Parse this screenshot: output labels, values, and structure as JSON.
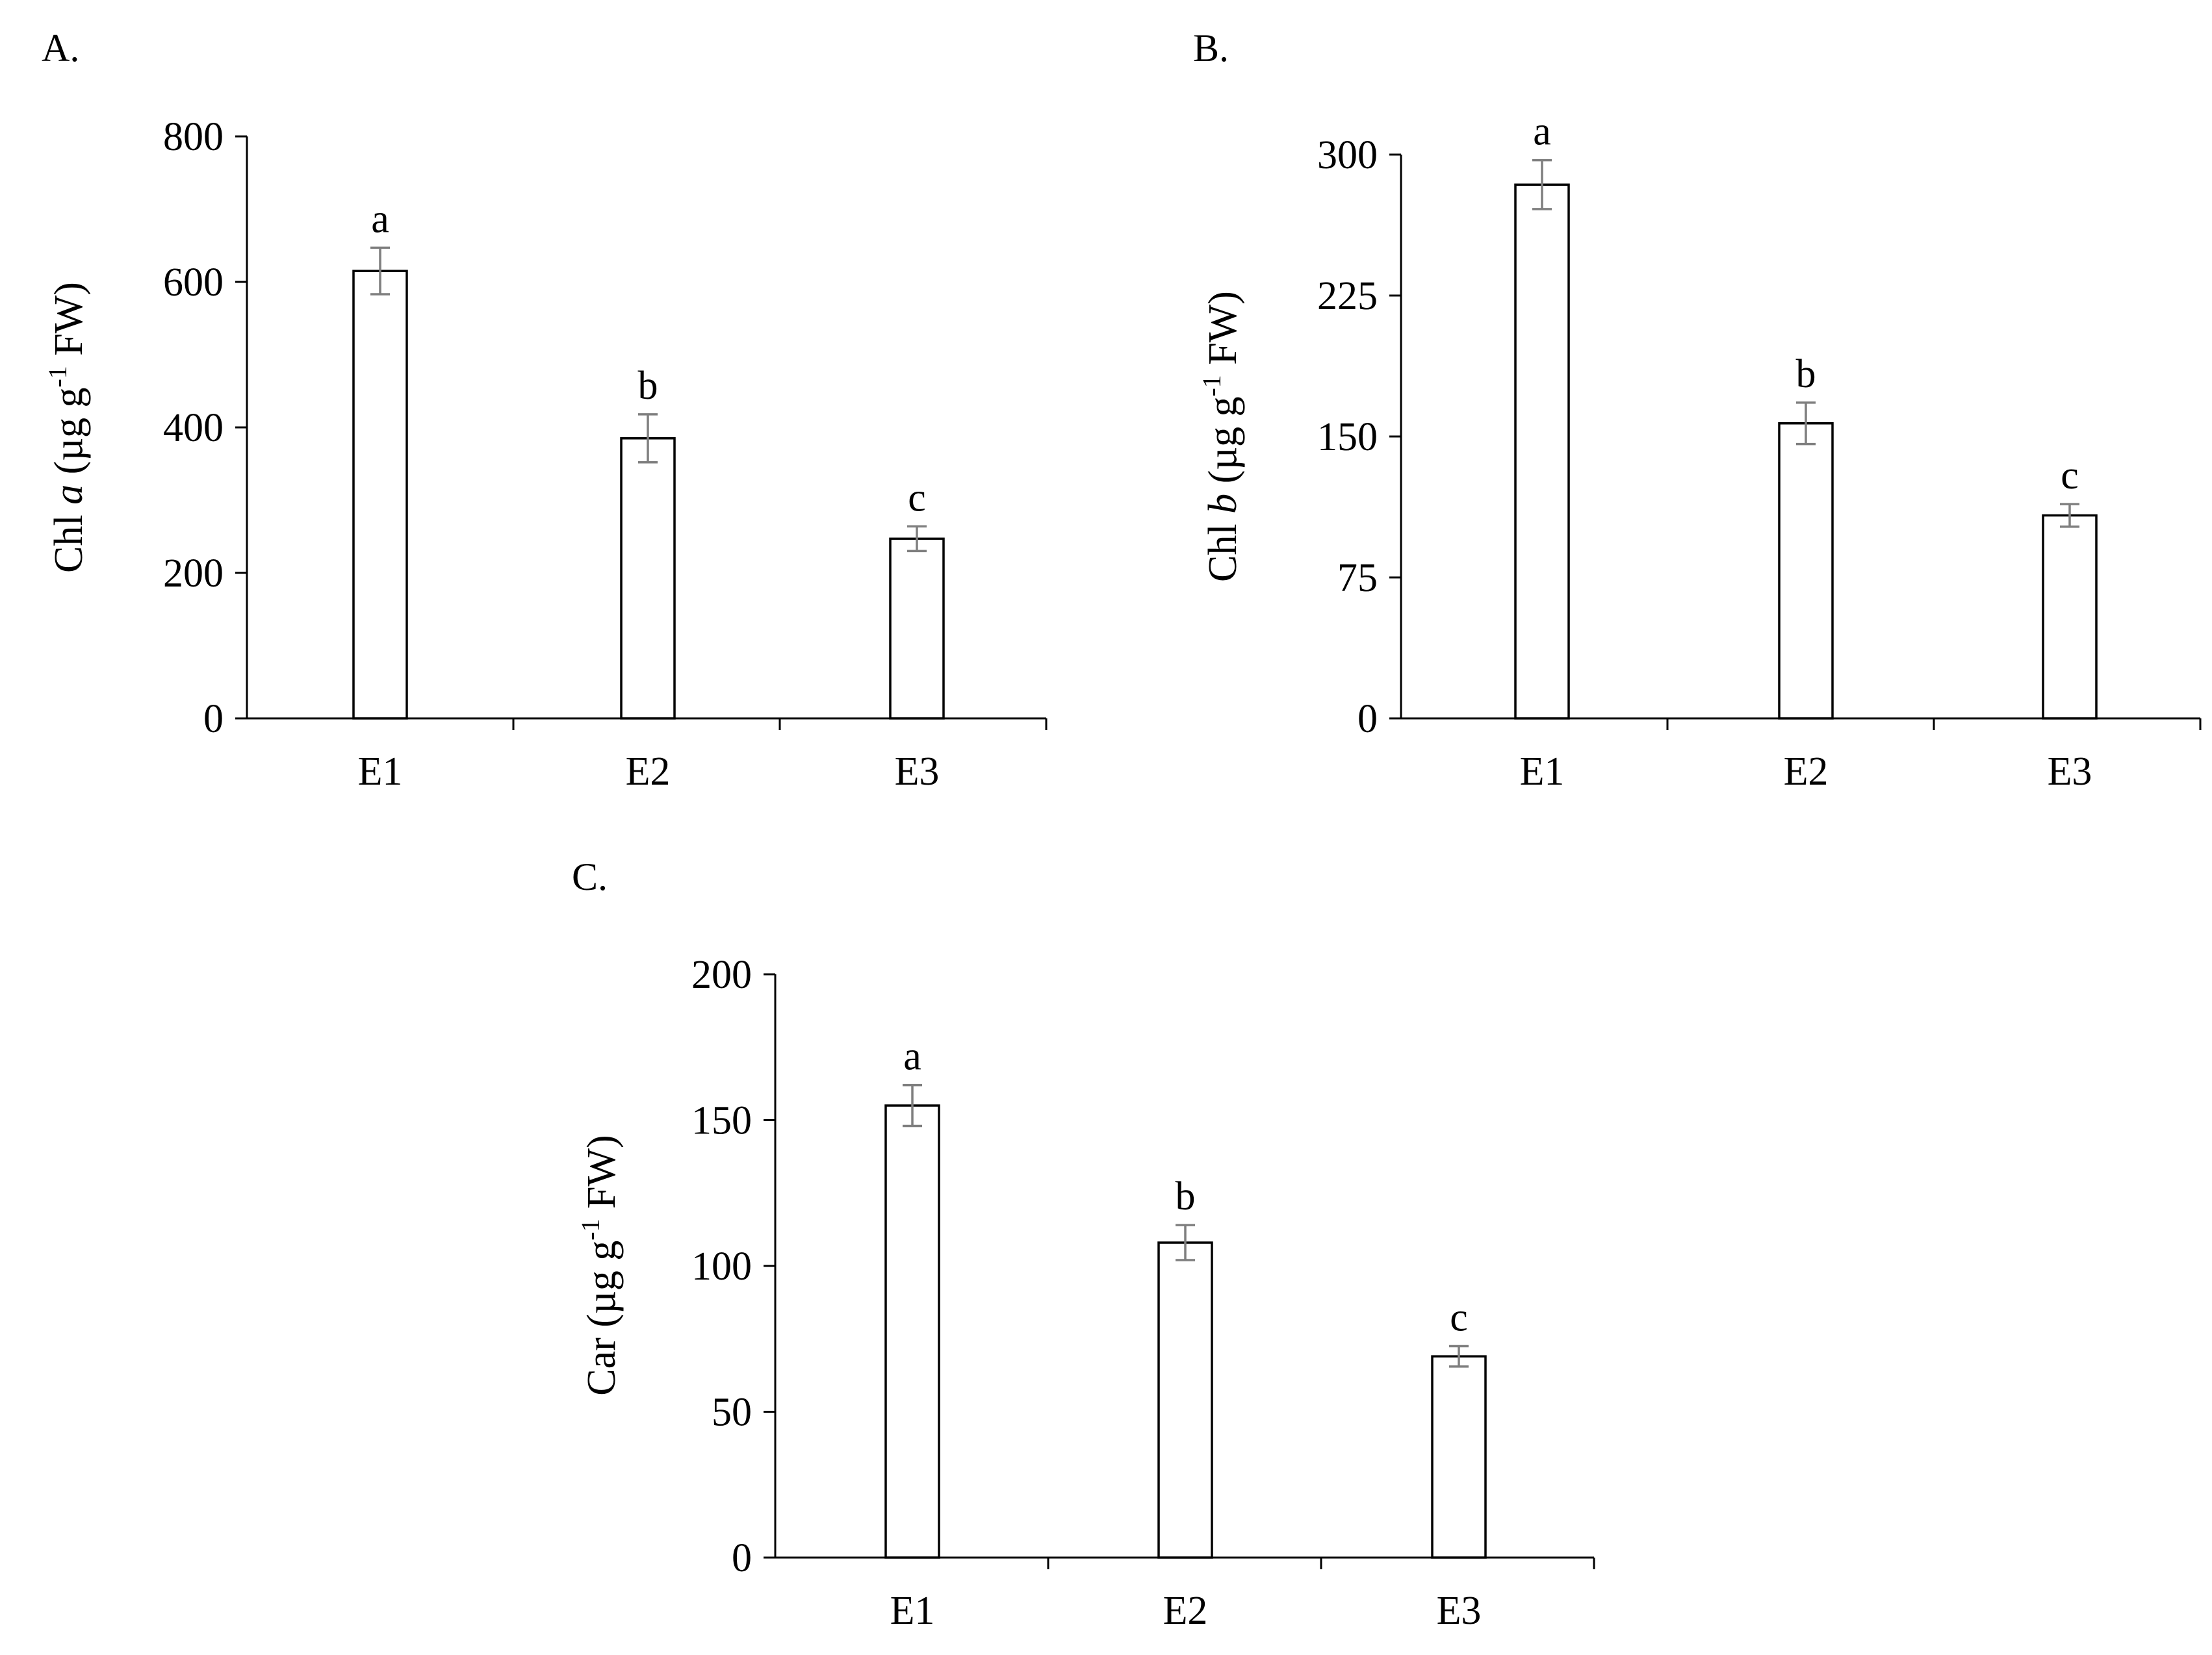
{
  "panels": [
    {
      "label": "A.",
      "ylabel_prefix": "Chl ",
      "ylabel_italic": "a",
      "ylabel_suffix": " (µg g",
      "ylabel_sup": "-1",
      "ylabel_end": " FW)"
    },
    {
      "label": "B.",
      "ylabel_prefix": "Chl ",
      "ylabel_italic": "b",
      "ylabel_suffix": " (µg g",
      "ylabel_sup": "-1",
      "ylabel_end": " FW)"
    },
    {
      "label": "C.",
      "ylabel_prefix": "Car (µg g",
      "ylabel_italic": "",
      "ylabel_suffix": "",
      "ylabel_sup": "-1",
      "ylabel_end": " FW)"
    }
  ],
  "chart_data": [
    {
      "type": "bar",
      "categories": [
        "E1",
        "E2",
        "E3"
      ],
      "values": [
        615,
        385,
        247
      ],
      "errors": [
        32,
        33,
        17
      ],
      "letters": [
        "a",
        "b",
        "c"
      ],
      "ylabel": "Chl a (µg g-1 FW)",
      "ylim": [
        0,
        800
      ],
      "yticks": [
        0,
        200,
        400,
        600,
        800
      ],
      "grid": false,
      "colors": {
        "bar_fill": "#ffffff",
        "bar_stroke": "#000000",
        "error": "#7f7f7f",
        "axis": "#000000"
      }
    },
    {
      "type": "bar",
      "categories": [
        "E1",
        "E2",
        "E3"
      ],
      "values": [
        284,
        157,
        108
      ],
      "errors": [
        13,
        11,
        6
      ],
      "letters": [
        "a",
        "b",
        "c"
      ],
      "ylabel": "Chl b (µg g-1 FW)",
      "ylim": [
        0,
        300
      ],
      "yticks": [
        0,
        75,
        150,
        225,
        300
      ],
      "grid": false,
      "colors": {
        "bar_fill": "#ffffff",
        "bar_stroke": "#000000",
        "error": "#7f7f7f",
        "axis": "#000000"
      }
    },
    {
      "type": "bar",
      "categories": [
        "E1",
        "E2",
        "E3"
      ],
      "values": [
        155,
        108,
        69
      ],
      "errors": [
        7,
        6,
        3.5
      ],
      "letters": [
        "a",
        "b",
        "c"
      ],
      "ylabel": "Car (µg g-1 FW)",
      "ylim": [
        0,
        200
      ],
      "yticks": [
        0,
        50,
        100,
        150,
        200
      ],
      "grid": false,
      "colors": {
        "bar_fill": "#ffffff",
        "bar_stroke": "#000000",
        "error": "#7f7f7f",
        "axis": "#000000"
      }
    }
  ]
}
